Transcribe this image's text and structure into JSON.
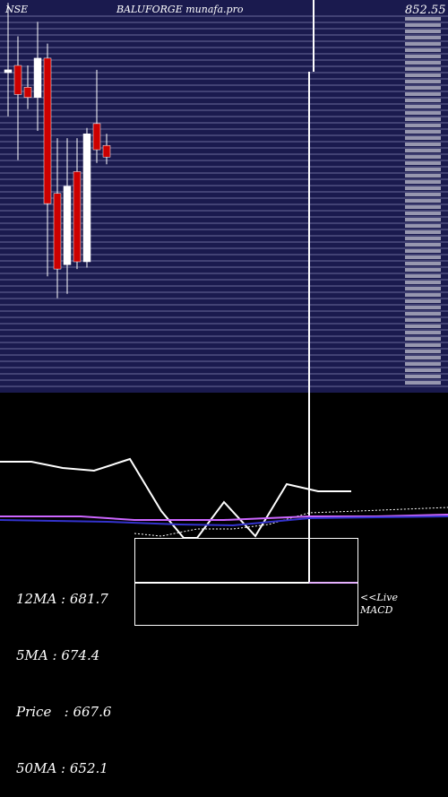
{
  "header": {
    "exchange": "NSE",
    "title": "BALUFORGE munafa.pro",
    "last_price_label": "852.55"
  },
  "colors": {
    "panel_bg": "#1a1a4e",
    "grid_line": "#d9d9ff",
    "up_candle": "#ffffff",
    "down_candle": "#cc0000",
    "ma_white": "#ffffff",
    "ma_purple": "#cc66ff",
    "ma_blue": "#3333cc",
    "macd_line": "#ffffff"
  },
  "stats": {
    "ma12": "12MA : 681.7",
    "ma5": "5MA : 674.4",
    "price": "Price   : 667.6",
    "ma50": "50MA : 652.1"
  },
  "macd": {
    "live_label": "<<Live",
    "macd_label": "MACD"
  },
  "chart_data": {
    "type": "candlestick",
    "title": "BALUFORGE munafa.pro",
    "ylim": [
      600,
      870
    ],
    "candles": [
      {
        "open": 820,
        "close": 822,
        "high": 868,
        "low": 790,
        "color": "up"
      },
      {
        "open": 825,
        "close": 805,
        "high": 845,
        "low": 760,
        "color": "down"
      },
      {
        "open": 810,
        "close": 803,
        "high": 825,
        "low": 795,
        "color": "down"
      },
      {
        "open": 803,
        "close": 830,
        "high": 855,
        "low": 780,
        "color": "up"
      },
      {
        "open": 830,
        "close": 730,
        "high": 840,
        "low": 680,
        "color": "down"
      },
      {
        "open": 737,
        "close": 685,
        "high": 775,
        "low": 665,
        "color": "down"
      },
      {
        "open": 688,
        "close": 742,
        "high": 775,
        "low": 668,
        "color": "up"
      },
      {
        "open": 752,
        "close": 690,
        "high": 775,
        "low": 685,
        "color": "down"
      },
      {
        "open": 690,
        "close": 778,
        "high": 782,
        "low": 686,
        "color": "up"
      },
      {
        "open": 785,
        "close": 767,
        "high": 822,
        "low": 758,
        "color": "down"
      },
      {
        "open": 770,
        "close": 762,
        "high": 778,
        "low": 757,
        "color": "down"
      }
    ]
  }
}
